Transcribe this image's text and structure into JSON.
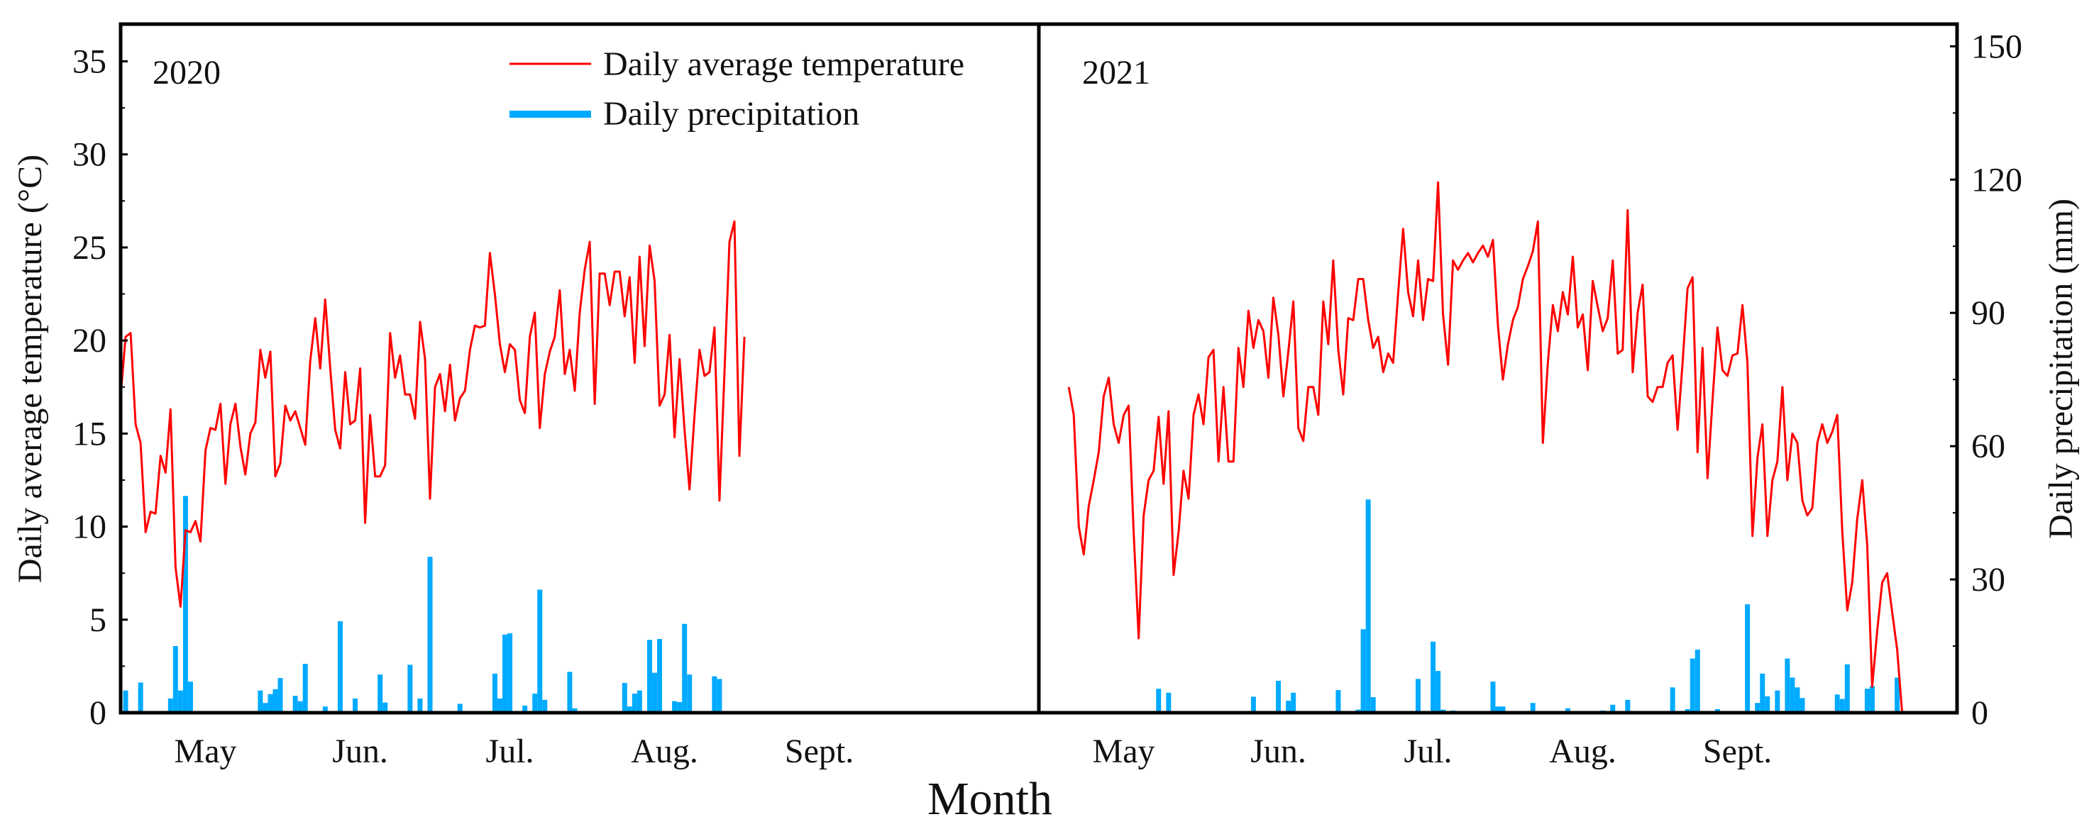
{
  "chart_data": {
    "type": "line",
    "xlabel": "Month",
    "ylabel_left": "Daily average temperature (°C)",
    "ylabel_right": "Daily precipitation (mm)",
    "ylim_left": [
      0,
      37
    ],
    "ylim_right": [
      0,
      155
    ],
    "yticks_left": [
      0,
      5,
      10,
      15,
      20,
      25,
      30,
      35
    ],
    "yticks_right": [
      0,
      30,
      60,
      90,
      120,
      150
    ],
    "x_unit": "day index from panel start (approx. mid-April)",
    "xlim": [
      0,
      184
    ],
    "month_ticks": [
      {
        "label": "May",
        "day": 17
      },
      {
        "label": "Jun.",
        "day": 48
      },
      {
        "label": "Jul.",
        "day": 78
      },
      {
        "label": "Aug.",
        "day": 109
      },
      {
        "label": "Sept.",
        "day": 140
      }
    ],
    "legend": {
      "placement": "top-center",
      "entries": [
        {
          "name": "Daily average temperature",
          "color": "#ff0000",
          "kind": "line"
        },
        {
          "name": "Daily precipitation",
          "color": "#00aaff",
          "kind": "bar"
        }
      ]
    },
    "panels": [
      {
        "year": "2020",
        "temperature_start_day": 0,
        "temperature": [
          17,
          20.2,
          20.4,
          15.5,
          14.5,
          9.7,
          10.8,
          10.7,
          13.8,
          12.9,
          16.3,
          7.8,
          5.7,
          9.8,
          9.7,
          10.3,
          9.2,
          14.1,
          15.3,
          15.2,
          16.6,
          12.3,
          15.5,
          16.6,
          14.3,
          12.8,
          15,
          15.6,
          19.5,
          18,
          19.4,
          12.7,
          13.4,
          16.5,
          15.7,
          16.2,
          15.3,
          14.4,
          18.9,
          21.2,
          18.5,
          22.2,
          18.5,
          15.2,
          14.2,
          18.3,
          15.5,
          15.7,
          18.5,
          10.2,
          16,
          12.7,
          12.7,
          13.3,
          20.4,
          18,
          19.2,
          17.1,
          17.1,
          15.8,
          21,
          19,
          11.5,
          17.5,
          18.2,
          16.2,
          18.7,
          15.7,
          16.9,
          17.3,
          19.5,
          20.8,
          20.7,
          20.8,
          24.7,
          22.5,
          19.8,
          18.3,
          19.8,
          19.5,
          16.8,
          16.1,
          20.2,
          21.5,
          15.3,
          18.2,
          19.4,
          20.2,
          22.7,
          18.2,
          19.5,
          17.3,
          21.5,
          23.8,
          25.3,
          16.6,
          23.6,
          23.6,
          21.9,
          23.7,
          23.7,
          21.3,
          23.4,
          18.8,
          24.5,
          19.7,
          25.1,
          23.2,
          16.5,
          17.1,
          20.3,
          14.8,
          19,
          15.2,
          12,
          16,
          19.5,
          18.1,
          18.3,
          20.7,
          11.4,
          18.2,
          25.3,
          26.4,
          13.8,
          20.2
        ],
        "precipitation": [
          [
            1,
            5.0
          ],
          [
            4,
            6.8
          ],
          [
            10,
            3.2
          ],
          [
            11,
            15
          ],
          [
            12,
            5
          ],
          [
            13,
            48.8
          ],
          [
            14,
            7
          ],
          [
            28,
            5
          ],
          [
            29,
            2.2
          ],
          [
            30,
            4.2
          ],
          [
            31,
            5.3
          ],
          [
            32,
            7.8
          ],
          [
            35,
            3.8
          ],
          [
            36,
            2.6
          ],
          [
            37,
            11
          ],
          [
            41,
            1.4
          ],
          [
            44,
            20.6
          ],
          [
            47,
            3.2
          ],
          [
            52,
            8.6
          ],
          [
            53,
            2.3
          ],
          [
            58,
            10.8
          ],
          [
            60,
            3.2
          ],
          [
            62,
            35.1
          ],
          [
            68,
            2
          ],
          [
            75,
            8.8
          ],
          [
            76,
            3.2
          ],
          [
            77,
            17.6
          ],
          [
            78,
            17.9
          ],
          [
            81,
            1.6
          ],
          [
            83,
            4.3
          ],
          [
            84,
            27.7
          ],
          [
            85,
            2.9
          ],
          [
            90,
            9.2
          ],
          [
            91,
            1
          ],
          [
            101,
            6.7
          ],
          [
            102,
            1.4
          ],
          [
            103,
            4.3
          ],
          [
            104,
            5
          ],
          [
            106,
            16.4
          ],
          [
            107,
            9
          ],
          [
            108,
            16.6
          ],
          [
            111,
            2.6
          ],
          [
            112,
            2.4
          ],
          [
            113,
            20
          ],
          [
            114,
            8.6
          ],
          [
            119,
            8.2
          ],
          [
            120,
            7.6
          ]
        ]
      },
      {
        "year": "2021",
        "temperature_start_day": 6,
        "temperature": [
          17.5,
          16,
          10,
          8.5,
          11.1,
          12.5,
          14,
          17,
          18,
          15.5,
          14.5,
          16,
          16.5,
          9.7,
          4,
          10.6,
          12.5,
          13,
          15.9,
          12.3,
          16.2,
          7.4,
          9.7,
          13,
          11.5,
          16,
          17.1,
          15.5,
          19.1,
          19.5,
          13.5,
          17.5,
          13.5,
          13.5,
          19.6,
          17.5,
          21.6,
          19.6,
          21.1,
          20.5,
          18,
          22.3,
          20.3,
          17,
          19.4,
          22.1,
          15.3,
          14.6,
          17.5,
          17.5,
          16,
          22.1,
          19.8,
          24.3,
          19.5,
          17.1,
          21.2,
          21.1,
          23.3,
          23.3,
          21.1,
          19.6,
          20.2,
          18.3,
          19.3,
          18.8,
          22.5,
          26,
          22.6,
          21.3,
          24.3,
          21.1,
          23.3,
          23.2,
          28.5,
          21.4,
          18.7,
          24.3,
          23.8,
          24.3,
          24.7,
          24.2,
          24.7,
          25.1,
          24.5,
          25.4,
          20.8,
          17.9,
          19.8,
          21.1,
          21.8,
          23.3,
          24,
          24.8,
          26.4,
          14.5,
          18.8,
          21.9,
          20.5,
          22.6,
          21.4,
          24.5,
          20.7,
          21.4,
          18.4,
          23.2,
          21.8,
          20.5,
          21.2,
          24.3,
          19.3,
          19.5,
          27,
          18.3,
          21.5,
          23,
          17,
          16.7,
          17.5,
          17.5,
          18.8,
          19.2,
          15.2,
          18.8,
          22.8,
          23.4,
          14,
          19.6,
          12.6,
          16.8,
          20.7,
          18.4,
          18.1,
          19.2,
          19.3,
          21.9,
          18.8,
          9.5,
          13.7,
          15.5,
          9.5,
          12.5,
          13.5,
          17.5,
          12.5,
          15,
          14.5,
          11.4,
          10.6,
          11,
          14.5,
          15.5,
          14.5,
          15.1,
          16,
          9.7,
          5.5,
          7,
          10.4,
          12.5,
          9,
          1.4,
          4.4,
          7,
          7.5,
          5.4,
          3.4,
          0
        ],
        "precipitation": [
          [
            24,
            5.4
          ],
          [
            26,
            4.5
          ],
          [
            43,
            3.6
          ],
          [
            48,
            7.2
          ],
          [
            50,
            2.7
          ],
          [
            51,
            4.5
          ],
          [
            60,
            5.1
          ],
          [
            64,
            0.7
          ],
          [
            65,
            18.8
          ],
          [
            66,
            48
          ],
          [
            67,
            3.5
          ],
          [
            76,
            7.6
          ],
          [
            79,
            16
          ],
          [
            80,
            9.4
          ],
          [
            81,
            0.7
          ],
          [
            83,
            0.5
          ],
          [
            91,
            7
          ],
          [
            92,
            1.4
          ],
          [
            93,
            1.4
          ],
          [
            99,
            2.2
          ],
          [
            106,
            1
          ],
          [
            113,
            0.5
          ],
          [
            115,
            1.8
          ],
          [
            118,
            2.9
          ],
          [
            127,
            5.7
          ],
          [
            130,
            0.8
          ],
          [
            131,
            12.2
          ],
          [
            132,
            14.2
          ],
          [
            136,
            0.8
          ],
          [
            142,
            24.4
          ],
          [
            144,
            2.2
          ],
          [
            145,
            8.8
          ],
          [
            146,
            3.7
          ],
          [
            148,
            5
          ],
          [
            150,
            12.2
          ],
          [
            151,
            7.9
          ],
          [
            152,
            5.7
          ],
          [
            153,
            3.3
          ],
          [
            160,
            4.1
          ],
          [
            161,
            3.1
          ],
          [
            162,
            10.9
          ],
          [
            166,
            5.4
          ],
          [
            167,
            6
          ],
          [
            172,
            7.9
          ]
        ]
      }
    ]
  }
}
